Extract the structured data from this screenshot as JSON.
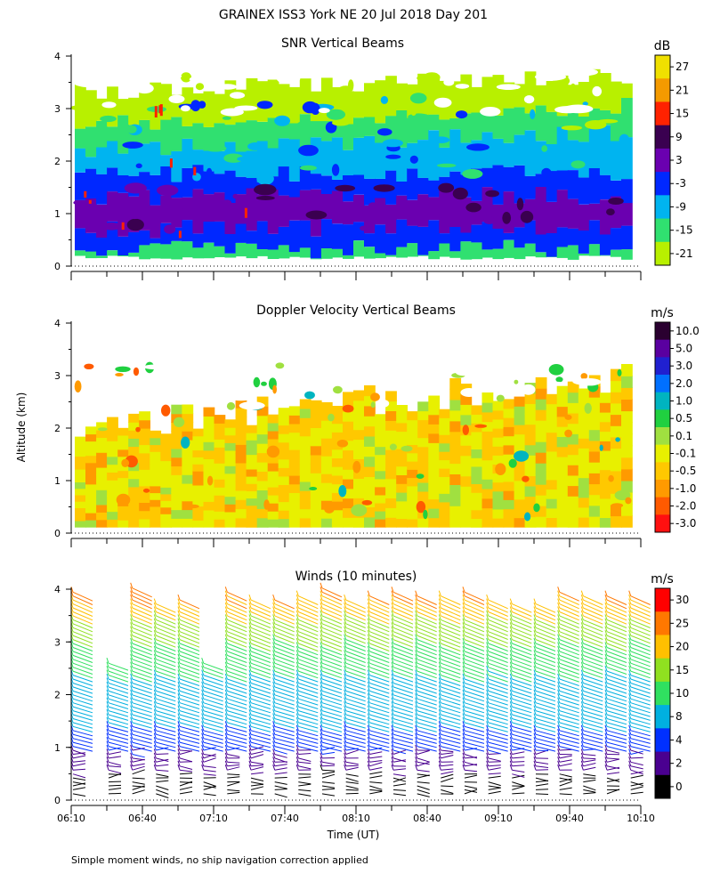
{
  "figure": {
    "title": "GRAINEX ISS3 York NE  20 Jul 2018 Day 201",
    "footnote": "Simple moment winds, no ship navigation correction applied",
    "ylabel": "Altitude (km)",
    "xlabel": "Time (UT)"
  },
  "chart_data": [
    {
      "type": "heatmap",
      "title": "SNR Vertical Beams",
      "ylabel": "Altitude (km)",
      "x_tick_labels": [
        "06:10",
        "06:40",
        "07:10",
        "07:40",
        "08:10",
        "08:40",
        "09:10",
        "09:40",
        "10:10"
      ],
      "y_ticks": [
        0,
        1,
        2,
        3,
        4
      ],
      "xlim": [
        "06:10",
        "10:10"
      ],
      "ylim": [
        0,
        4
      ],
      "colorbar": {
        "unit": "dB",
        "labels": [
          "27",
          "21",
          "15",
          "9",
          "3",
          "-3",
          "-9",
          "-15",
          "-21"
        ],
        "colors": [
          "#f0e000",
          "#f49a00",
          "#ff2200",
          "#3a0050",
          "#6a00b0",
          "#0028ff",
          "#00b4f0",
          "#30e070",
          "#b8f000"
        ]
      },
      "layers": [
        {
          "top": 0.3,
          "value": -15
        },
        {
          "top": 0.7,
          "value": -3
        },
        {
          "top": 1.3,
          "value": 3
        },
        {
          "top": 1.75,
          "value": -3
        },
        {
          "top": 2.2,
          "value": -9
        },
        {
          "top": 2.7,
          "value": -15
        },
        {
          "top": 3.3,
          "value": -21
        }
      ]
    },
    {
      "type": "heatmap",
      "title": "Doppler Velocity Vertical Beams",
      "ylabel": "Altitude (km)",
      "x_tick_labels": [
        "06:10",
        "06:40",
        "07:10",
        "07:40",
        "08:10",
        "08:40",
        "09:10",
        "09:40",
        "10:10"
      ],
      "y_ticks": [
        0,
        1,
        2,
        3,
        4
      ],
      "xlim": [
        "06:10",
        "10:10"
      ],
      "ylim": [
        0,
        4
      ],
      "colorbar": {
        "unit": "m/s",
        "labels": [
          "10.0",
          "5.0",
          "3.0",
          "2.0",
          "1.0",
          "0.5",
          "0.1",
          "-0.1",
          "-0.5",
          "-1.0",
          "-2.0",
          "-3.0"
        ],
        "colors": [
          "#2a0030",
          "#5a00a0",
          "#2020d0",
          "#0070ff",
          "#00b4c0",
          "#20d040",
          "#a0e040",
          "#e8f000",
          "#ffc800",
          "#ff9a00",
          "#ff5a00",
          "#ff1010"
        ]
      },
      "dominant_values": [
        -0.1,
        -0.5
      ]
    },
    {
      "type": "wind-barbs",
      "title": "Winds (10 minutes)",
      "ylabel": "Altitude (km)",
      "xlabel": "Time (UT)",
      "x_tick_labels": [
        "06:10",
        "06:40",
        "07:10",
        "07:40",
        "08:10",
        "08:40",
        "09:10",
        "09:40",
        "10:10"
      ],
      "y_ticks": [
        0,
        1,
        2,
        3,
        4
      ],
      "xlim": [
        "06:10",
        "10:10"
      ],
      "ylim": [
        0,
        4
      ],
      "colorbar": {
        "unit": "m/s",
        "labels": [
          "30",
          "25",
          "20",
          "15",
          "10",
          "8",
          "4",
          "2",
          "0"
        ],
        "colors": [
          "#ff0000",
          "#ff7800",
          "#ffc000",
          "#90e020",
          "#30e060",
          "#00b0e0",
          "#0030ff",
          "#4a0090",
          "#000000"
        ]
      },
      "profile_times": [
        "06:10",
        "06:25",
        "06:35",
        "06:45",
        "06:55",
        "07:05",
        "07:15",
        "07:25",
        "07:35",
        "07:45",
        "07:55",
        "08:05",
        "08:15",
        "08:25",
        "08:35",
        "08:45",
        "08:55",
        "09:05",
        "09:15",
        "09:25",
        "09:35",
        "09:45",
        "09:55",
        "10:05"
      ]
    }
  ]
}
